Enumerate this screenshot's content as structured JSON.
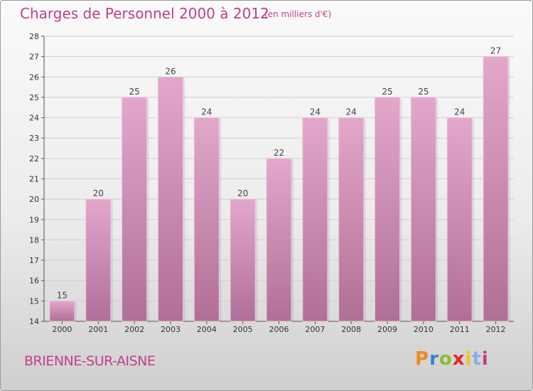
{
  "header": {
    "title": "Charges de Personnel 2000 à 2012",
    "subtitle": "(en milliers d'€)"
  },
  "footer": {
    "commune": "BRIENNE-SUR-AISNE",
    "logo_text": "Proxiti",
    "logo_colors": [
      "#f08a1c",
      "#2e86c8",
      "#8bbf2a",
      "#e2232a",
      "#f3c316",
      "#7fb3e0",
      "#c0408a"
    ]
  },
  "colors": {
    "bar_top": "#e3a7cc",
    "bar_bottom": "#b06f96",
    "text_accent": "#c0408a",
    "gridline": "#cfcfcf"
  },
  "chart_data": {
    "type": "bar",
    "title": "Charges de Personnel 2000 à 2012",
    "subtitle": "(en milliers d'€)",
    "categories": [
      "2000",
      "2001",
      "2002",
      "2003",
      "2004",
      "2005",
      "2006",
      "2007",
      "2008",
      "2009",
      "2010",
      "2011",
      "2012"
    ],
    "values": [
      15,
      20,
      25,
      26,
      24,
      20,
      22,
      24,
      24,
      25,
      25,
      24,
      27
    ],
    "ylim": [
      14,
      28
    ],
    "yticks": [
      14,
      15,
      16,
      17,
      18,
      19,
      20,
      21,
      22,
      23,
      24,
      25,
      26,
      27,
      28
    ],
    "grid": true,
    "legend": "none"
  }
}
